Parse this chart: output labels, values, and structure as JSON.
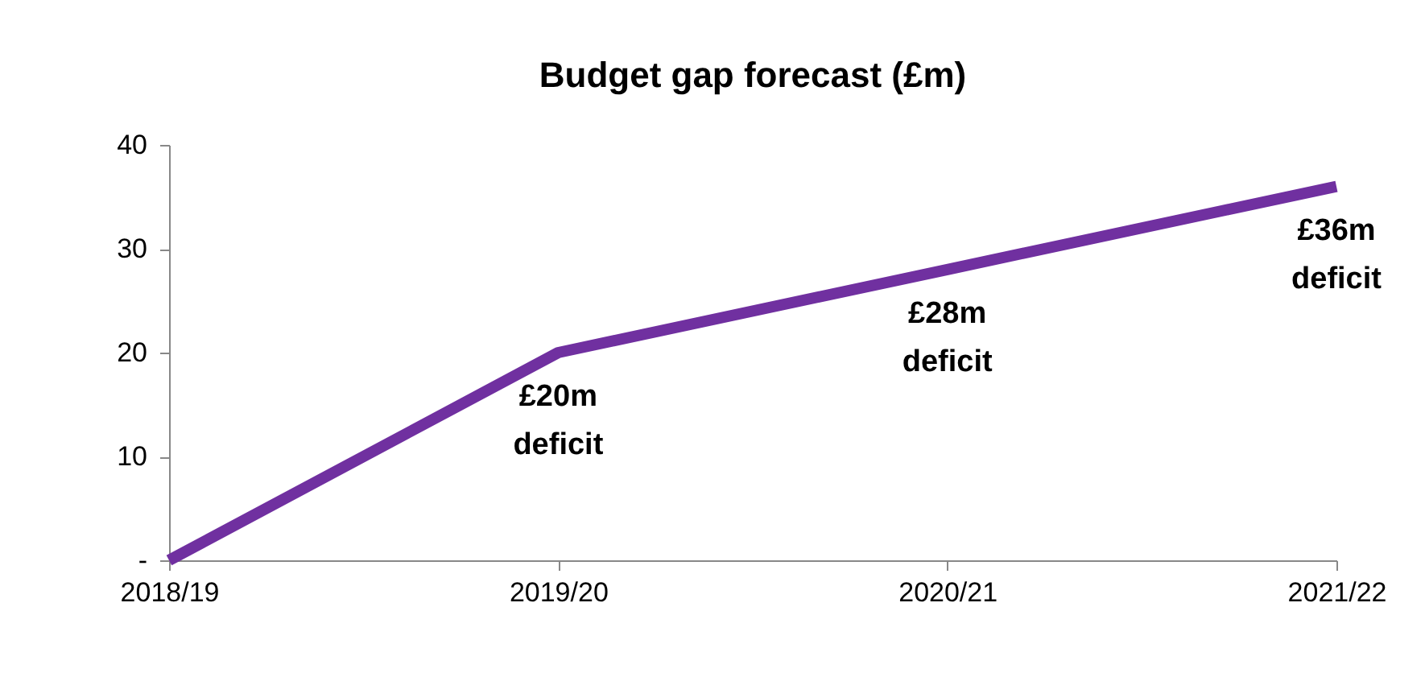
{
  "chart_data": {
    "type": "line",
    "title": "Budget gap forecast (£m)",
    "categories": [
      "2018/19",
      "2019/20",
      "2020/21",
      "2021/22"
    ],
    "series": [
      {
        "color": "#7030a0",
        "values": [
          0,
          20,
          28,
          36
        ]
      }
    ],
    "ylim": [
      0,
      40
    ],
    "yticks": [
      {
        "value": 0,
        "label": "-"
      },
      10,
      20,
      30,
      40
    ],
    "grid": false,
    "marker": "none",
    "line_style": "solid",
    "annotations": [
      {
        "text": "£20m deficit",
        "x": "2019/20",
        "y": 20
      },
      {
        "text": "£28m deficit",
        "x": "2020/21",
        "y": 28
      },
      {
        "text": "£36m deficit",
        "x": "2021/22",
        "y": 36
      }
    ]
  }
}
